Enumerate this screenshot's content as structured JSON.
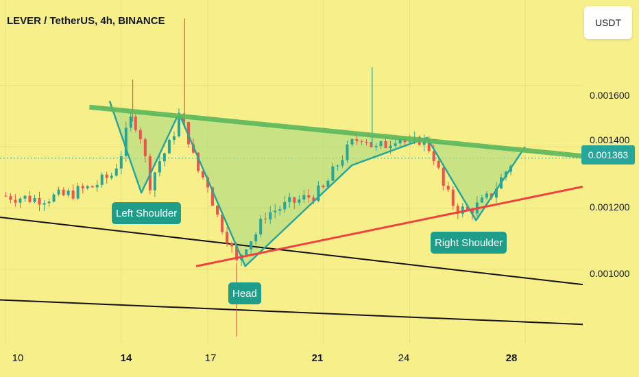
{
  "title": "LEVER / TetherUS, 4h, BINANCE",
  "currency_button": "USDT",
  "current_price_label": "0.001363",
  "annotations": {
    "left_shoulder": "Left Shoulder",
    "head": "Head",
    "right_shoulder": "Right Shoulder"
  },
  "colors": {
    "background": "#F7EF8A",
    "up_candle": "#26A69A",
    "down_candle": "#EF5350",
    "neckline": "#5CB85C",
    "support": "#F04040",
    "channel": "#111111",
    "pattern_fill": "#B9DE82",
    "price_label": "#26A69A",
    "annotation_bg": "#1E9E8A"
  },
  "chart_data": {
    "type": "candlestick",
    "title": "LEVER / TetherUS, 4h, BINANCE",
    "y_axis": {
      "ticks": [
        "0.001600",
        "0.001400",
        "0.001200",
        "0.001000"
      ],
      "tick_values": [
        0.0016,
        0.0014,
        0.0012,
        0.001
      ],
      "range": [
        0.00076,
        0.00188
      ]
    },
    "x_axis": {
      "ticks": [
        "10",
        "14",
        "17",
        "21",
        "24",
        "28"
      ],
      "bold_ticks": [
        "14",
        "21",
        "28"
      ],
      "tick_days": [
        10,
        14,
        17,
        21,
        24,
        28
      ],
      "range_days": [
        9.8,
        30.0
      ]
    },
    "last_price": 0.001363,
    "price_path": [
      [
        10.0,
        0.00124
      ],
      [
        11.0,
        0.00123
      ],
      [
        12.0,
        0.00124
      ],
      [
        13.0,
        0.00127
      ],
      [
        13.7,
        0.00131
      ],
      [
        14.0,
        0.00138
      ],
      [
        14.3,
        0.00149
      ],
      [
        14.6,
        0.00147
      ],
      [
        15.0,
        0.00128
      ],
      [
        15.3,
        0.00135
      ],
      [
        15.7,
        0.00141
      ],
      [
        16.0,
        0.0015
      ],
      [
        16.3,
        0.00144
      ],
      [
        16.6,
        0.00133
      ],
      [
        17.0,
        0.00128
      ],
      [
        17.3,
        0.00118
      ],
      [
        17.7,
        0.0011
      ],
      [
        18.0,
        0.00102
      ],
      [
        18.3,
        0.00108
      ],
      [
        18.7,
        0.00112
      ],
      [
        19.0,
        0.00118
      ],
      [
        19.5,
        0.0012
      ],
      [
        20.0,
        0.00122
      ],
      [
        20.6,
        0.00124
      ],
      [
        21.0,
        0.00126
      ],
      [
        21.3,
        0.00131
      ],
      [
        21.6,
        0.00136
      ],
      [
        22.0,
        0.00141
      ],
      [
        22.4,
        0.00144
      ],
      [
        22.8,
        0.00139
      ],
      [
        23.2,
        0.00141
      ],
      [
        23.6,
        0.00144
      ],
      [
        24.0,
        0.0014
      ],
      [
        24.4,
        0.00143
      ],
      [
        24.8,
        0.00138
      ],
      [
        25.2,
        0.00126
      ],
      [
        25.6,
        0.0012
      ],
      [
        26.0,
        0.00119
      ],
      [
        26.4,
        0.00121
      ],
      [
        26.8,
        0.00124
      ],
      [
        27.2,
        0.0013
      ],
      [
        27.6,
        0.00136
      ]
    ],
    "spikes": [
      {
        "day": 14.4,
        "high": 0.00162
      },
      {
        "day": 16.2,
        "high": 0.00182
      },
      {
        "day": 18.0,
        "low": 0.00078
      },
      {
        "day": 22.7,
        "high": 0.00166
      }
    ],
    "lines": {
      "neckline": [
        [
          12.9,
          0.00153
        ],
        [
          30.0,
          0.00137
        ]
      ],
      "support": [
        [
          16.6,
          0.00101
        ],
        [
          30.0,
          0.00127
        ]
      ],
      "channel_upper": [
        [
          9.8,
          0.00117
        ],
        [
          30.0,
          0.00095
        ]
      ],
      "channel_lower": [
        [
          9.8,
          0.0009
        ],
        [
          30.0,
          0.00082
        ]
      ],
      "pattern_path": [
        [
          13.6,
          0.00155
        ],
        [
          14.7,
          0.00125
        ],
        [
          16.0,
          0.00151
        ],
        [
          18.3,
          0.00101
        ],
        [
          22.0,
          0.00134
        ],
        [
          24.6,
          0.00143
        ],
        [
          26.3,
          0.00116
        ],
        [
          28.0,
          0.0014
        ]
      ]
    },
    "grid": true
  }
}
